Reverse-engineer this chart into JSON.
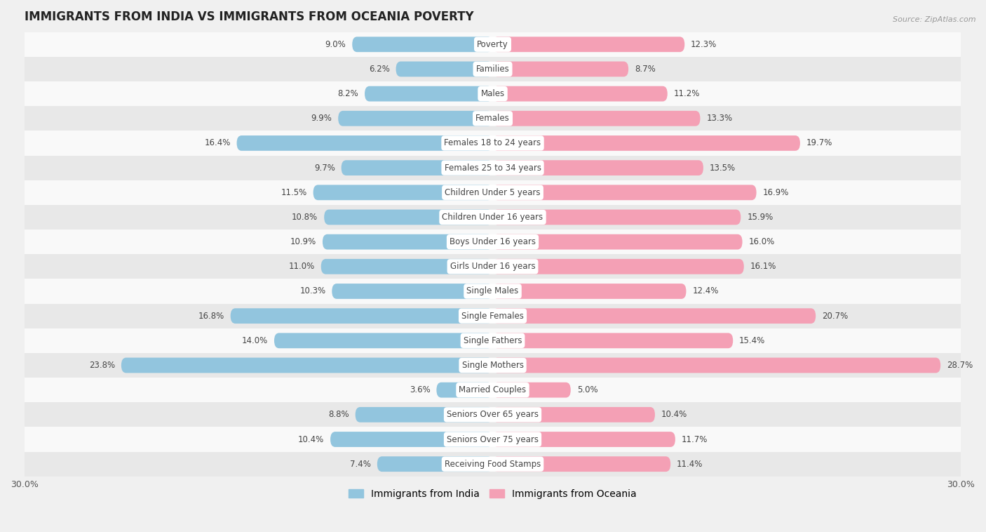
{
  "title": "IMMIGRANTS FROM INDIA VS IMMIGRANTS FROM OCEANIA POVERTY",
  "source": "Source: ZipAtlas.com",
  "categories": [
    "Poverty",
    "Families",
    "Males",
    "Females",
    "Females 18 to 24 years",
    "Females 25 to 34 years",
    "Children Under 5 years",
    "Children Under 16 years",
    "Boys Under 16 years",
    "Girls Under 16 years",
    "Single Males",
    "Single Females",
    "Single Fathers",
    "Single Mothers",
    "Married Couples",
    "Seniors Over 65 years",
    "Seniors Over 75 years",
    "Receiving Food Stamps"
  ],
  "india_values": [
    9.0,
    6.2,
    8.2,
    9.9,
    16.4,
    9.7,
    11.5,
    10.8,
    10.9,
    11.0,
    10.3,
    16.8,
    14.0,
    23.8,
    3.6,
    8.8,
    10.4,
    7.4
  ],
  "oceania_values": [
    12.3,
    8.7,
    11.2,
    13.3,
    19.7,
    13.5,
    16.9,
    15.9,
    16.0,
    16.1,
    12.4,
    20.7,
    15.4,
    28.7,
    5.0,
    10.4,
    11.7,
    11.4
  ],
  "india_color": "#92C5DE",
  "oceania_color": "#F4A0B5",
  "bar_height": 0.62,
  "xlim": 30.0,
  "background_color": "#f0f0f0",
  "row_colors": [
    "#f9f9f9",
    "#e8e8e8"
  ],
  "title_fontsize": 12,
  "label_fontsize": 8.5,
  "value_fontsize": 8.5,
  "legend_fontsize": 10,
  "india_label": "Immigrants from India",
  "oceania_label": "Immigrants from Oceania"
}
